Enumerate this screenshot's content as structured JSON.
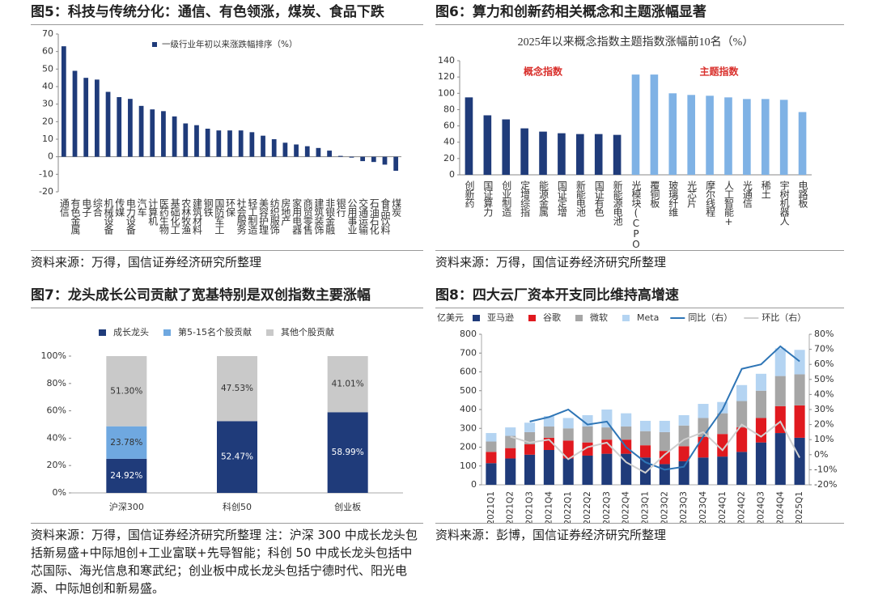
{
  "chart_data": [
    {
      "type": "bar",
      "title": "图5：科技与传统分化：通信、有色领涨，煤炭、食品下跌",
      "source": "资料来源：万得，国信证券经济研究所整理",
      "categories": [
        "通信",
        "有色金属",
        "电子",
        "综合",
        "机械设备",
        "传媒",
        "电力设备",
        "汽车",
        "计算机",
        "医药生物",
        "基础化工",
        "农林牧渔",
        "建筑材料",
        "钢铁",
        "国防军工",
        "环保",
        "社会服务",
        "轻工制造",
        "美容护理",
        "纺织服饰",
        "房地产",
        "家用电器",
        "商贸零售",
        "建筑装饰",
        "非银金融",
        "银行",
        "公用事业",
        "交通运输",
        "石油石化",
        "食品饮料",
        "煤炭"
      ],
      "series": [
        {
          "name": "一级行业年初以来涨跌幅排序（%）",
          "color": "#1f3b7a",
          "values": [
            63,
            49,
            45,
            44,
            37,
            34,
            33,
            29,
            27,
            26,
            23,
            19,
            18,
            16,
            15,
            15,
            15,
            14,
            12,
            10,
            8,
            7,
            6,
            5,
            3.5,
            0.5,
            -0.5,
            -2.5,
            -3,
            -4.5,
            -8
          ]
        }
      ],
      "ylim": [
        -20,
        70
      ],
      "yticks": [
        -20,
        -10,
        0,
        10,
        20,
        30,
        40,
        50,
        60,
        70
      ],
      "legend": "top"
    },
    {
      "type": "bar",
      "title": "图6：算力和创新药相关概念和主题涨幅显著",
      "subtitle": "2025年以来概念指数主题指数涨幅前10名（%）",
      "source": "资料来源：万得，国信证券经济研究所整理",
      "categories": [
        "创新药",
        "国证算力",
        "创业制造",
        "定增综指",
        "能源金属",
        "国证定增",
        "新能电池",
        "国证有色",
        "新能源电池",
        "光模块(CPO)",
        "覆铜板",
        "玻璃纤维",
        "光芯片",
        "摩尔线程",
        "人工智能+",
        "光通信",
        "稀土",
        "宇树机器人",
        "电路板"
      ],
      "series": [
        {
          "name": "概念指数",
          "color": "#1f3b7a",
          "values": [
            95,
            73,
            68,
            57,
            53,
            51,
            50,
            50,
            49,
            null,
            null,
            null,
            null,
            null,
            null,
            null,
            null,
            null,
            null
          ]
        },
        {
          "name": "主题指数",
          "color": "#7fb2e5",
          "values": [
            null,
            null,
            null,
            null,
            null,
            null,
            null,
            null,
            null,
            123,
            123,
            100,
            98,
            97,
            95,
            93,
            93,
            92,
            77
          ]
        }
      ],
      "ylim": [
        0,
        140
      ],
      "yticks": [
        0,
        20,
        40,
        60,
        80,
        100,
        120,
        140
      ]
    },
    {
      "type": "stacked_bar",
      "title": "图7：龙头成长公司贡献了宽基特别是双创指数主要涨幅",
      "source": "资料来源：万得，国信证券经济研究所整理 注：沪深 300 中成长龙头包括新易盛+中际旭创+工业富联+先导智能；科创 50 中成长龙头包括中芯国际、海光信息和寒武纪；创业板中成长龙头包括宁德时代、阳光电源、中际旭创和新易盛。",
      "categories": [
        "沪深300",
        "科创50",
        "创业板"
      ],
      "series": [
        {
          "name": "成长龙头",
          "color": "#1f3b7a",
          "values": [
            24.92,
            52.47,
            58.99
          ],
          "value_labels": [
            "24.92%",
            "52.47%",
            "58.99%"
          ]
        },
        {
          "name": "第5-15名个股贡献",
          "color": "#6fa8e0",
          "values": [
            23.78,
            null,
            null
          ],
          "value_labels": [
            "23.78%",
            null,
            null
          ]
        },
        {
          "name": "其他个股贡献",
          "color": "#c9c9c9",
          "values": [
            51.3,
            47.53,
            41.01
          ],
          "value_labels": [
            "51.30%",
            "47.53%",
            "41.01%"
          ]
        }
      ],
      "ylim": [
        0,
        100
      ],
      "yticks": [
        {
          "value": 0,
          "label": "0%"
        },
        {
          "value": 20,
          "label": "20%"
        },
        {
          "value": 40,
          "label": "40%"
        },
        {
          "value": 60,
          "label": "60%"
        },
        {
          "value": 80,
          "label": "80%"
        },
        {
          "value": 100,
          "label": "100%"
        }
      ],
      "legend": "top"
    },
    {
      "type": "bar_line",
      "title": "图8：四大云厂资本开支同比维持高增速",
      "source": "资料来源：彭博，国信证券经济研究所整理",
      "ylabel": "亿美元",
      "categories": [
        "2021Q1",
        "2021Q2",
        "2021Q3",
        "2021Q4",
        "2022Q1",
        "2022Q2",
        "2022Q3",
        "2022Q4",
        "2023Q1",
        "2023Q2",
        "2023Q3",
        "2023Q4",
        "2024Q1",
        "2024Q2",
        "2024Q3",
        "2024Q4",
        "2025Q1"
      ],
      "series": [
        {
          "name": "亚马逊",
          "color": "#1f3b7a",
          "values": [
            115,
            140,
            160,
            185,
            140,
            155,
            165,
            165,
            145,
            110,
            125,
            145,
            150,
            175,
            225,
            275,
            250
          ]
        },
        {
          "name": "谷歌",
          "color": "#e0191f",
          "values": [
            60,
            55,
            55,
            65,
            95,
            70,
            75,
            75,
            65,
            70,
            80,
            110,
            120,
            130,
            130,
            143,
            172
          ]
        },
        {
          "name": "微软",
          "color": "#a6a6a6",
          "values": [
            55,
            65,
            65,
            60,
            65,
            85,
            65,
            70,
            75,
            100,
            110,
            100,
            110,
            140,
            145,
            160,
            165
          ]
        },
        {
          "name": "Meta",
          "color": "#b4d4f2",
          "values": [
            45,
            45,
            50,
            55,
            55,
            60,
            95,
            70,
            55,
            60,
            55,
            75,
            60,
            85,
            90,
            147,
            130
          ]
        },
        {
          "name": "同比（右）",
          "color": "#2e75b6",
          "axis": "y2",
          "values": [
            null,
            null,
            22,
            25,
            30,
            20,
            22,
            5,
            -5,
            -10,
            -8,
            12,
            30,
            57,
            60,
            72,
            62
          ]
        },
        {
          "name": "环比（右）",
          "color": "#cfcfcf",
          "axis": "y2",
          "values": [
            null,
            12,
            8,
            10,
            -3,
            5,
            8,
            -5,
            -12,
            0,
            10,
            15,
            3,
            20,
            12,
            22,
            -2
          ]
        }
      ],
      "ylim": [
        0,
        800
      ],
      "yticks": [
        0,
        100,
        200,
        300,
        400,
        500,
        600,
        700,
        800
      ],
      "y2lim": [
        -20,
        80
      ],
      "y2ticks": [
        {
          "value": -20,
          "label": "-20%"
        },
        {
          "value": -10,
          "label": "-10%"
        },
        {
          "value": 0,
          "label": "0%"
        },
        {
          "value": 10,
          "label": "10%"
        },
        {
          "value": 20,
          "label": "20%"
        },
        {
          "value": 30,
          "label": "30%"
        },
        {
          "value": 40,
          "label": "40%"
        },
        {
          "value": 50,
          "label": "50%"
        },
        {
          "value": 60,
          "label": "60%"
        },
        {
          "value": 70,
          "label": "70%"
        },
        {
          "value": 80,
          "label": "80%"
        }
      ],
      "legend": "top"
    }
  ]
}
